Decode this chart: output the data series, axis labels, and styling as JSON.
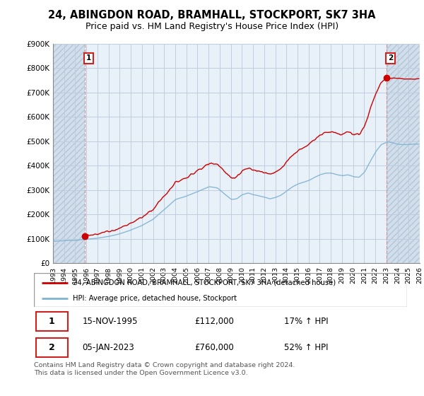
{
  "title": "24, ABINGDON ROAD, BRAMHALL, STOCKPORT, SK7 3HA",
  "subtitle": "Price paid vs. HM Land Registry's House Price Index (HPI)",
  "ylim": [
    0,
    900000
  ],
  "yticks": [
    0,
    100000,
    200000,
    300000,
    400000,
    500000,
    600000,
    700000,
    800000,
    900000
  ],
  "ytick_labels": [
    "£0",
    "£100K",
    "£200K",
    "£300K",
    "£400K",
    "£500K",
    "£600K",
    "£700K",
    "£800K",
    "£900K"
  ],
  "sale1_x": 1995.875,
  "sale1_price": 112000,
  "sale2_x": 2023.042,
  "sale2_price": 760000,
  "line_color": "#cc0000",
  "hpi_color": "#7fb3d3",
  "vline_color": "#cc9999",
  "chart_bg": "#e8f0f8",
  "hatch_color": "#c8d8e8",
  "grid_color": "#c0cce0",
  "legend_line_label": "24, ABINGDON ROAD, BRAMHALL, STOCKPORT, SK7 3HA (detached house)",
  "legend_hpi_label": "HPI: Average price, detached house, Stockport",
  "table_row1": [
    "1",
    "15-NOV-1995",
    "£112,000",
    "17% ↑ HPI"
  ],
  "table_row2": [
    "2",
    "05-JAN-2023",
    "£760,000",
    "52% ↑ HPI"
  ],
  "footnote": "Contains HM Land Registry data © Crown copyright and database right 2024.\nThis data is licensed under the Open Government Licence v3.0.",
  "title_fontsize": 10.5,
  "subtitle_fontsize": 9,
  "tick_fontsize": 7.5,
  "box_color": "#cc2222"
}
